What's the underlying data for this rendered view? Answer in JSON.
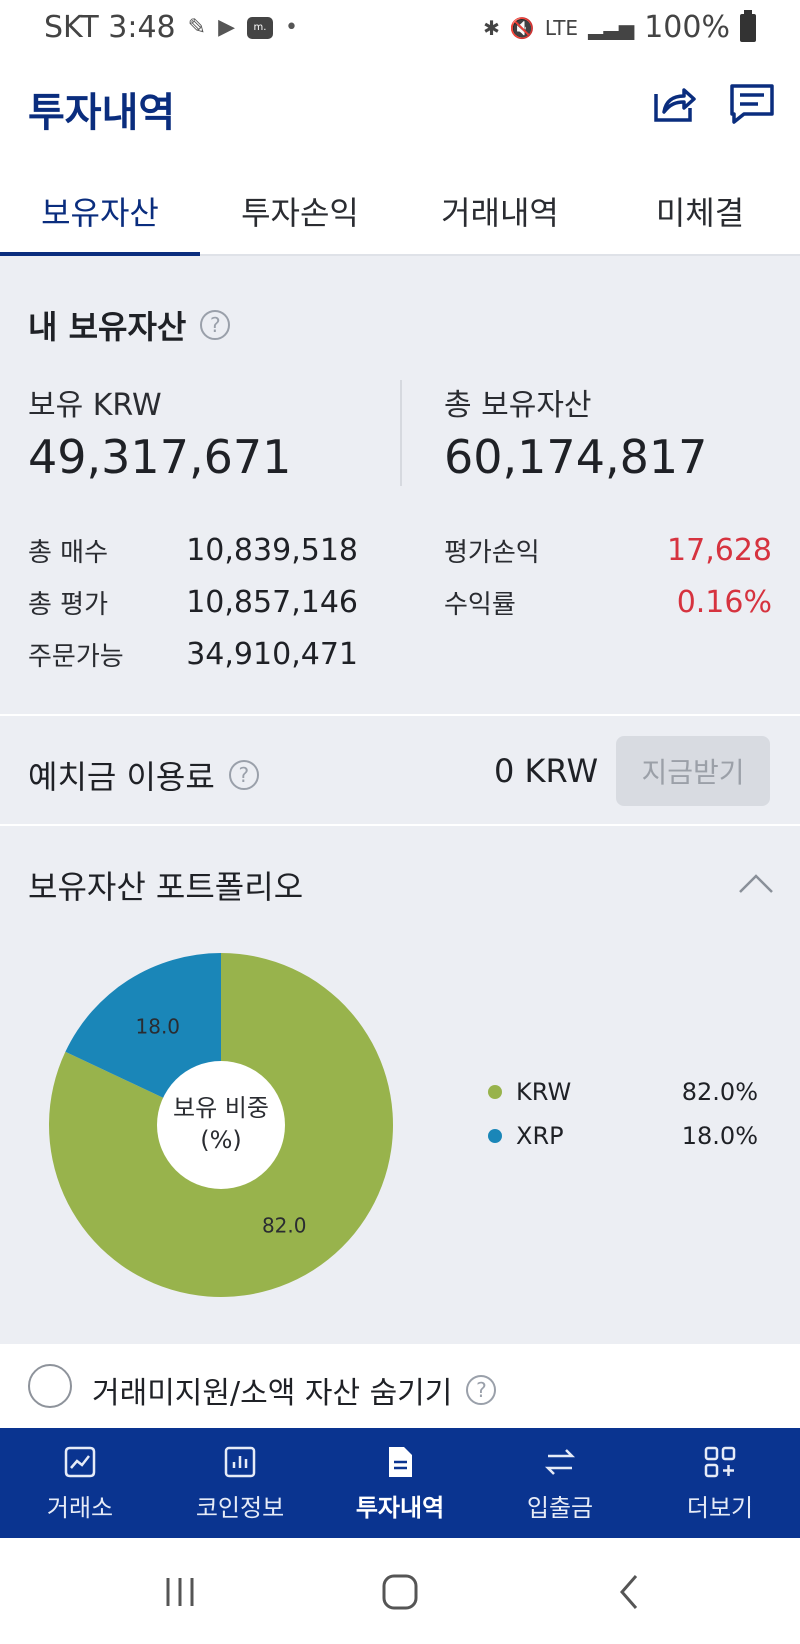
{
  "status_bar": {
    "carrier_time": "SKT 3:48",
    "battery": "100%",
    "network": "LTE",
    "notif_label": "m. Global",
    "dot": "•"
  },
  "header": {
    "title": "투자내역",
    "icons": [
      "share-icon",
      "chat-icon"
    ]
  },
  "tabs": [
    {
      "label": "보유자산",
      "active": true
    },
    {
      "label": "투자손익",
      "active": false
    },
    {
      "label": "거래내역",
      "active": false
    },
    {
      "label": "미체결",
      "active": false
    }
  ],
  "summary": {
    "title": "내 보유자산",
    "help": "?",
    "krw_label": "보유 KRW",
    "krw_value": "49,317,671",
    "total_label": "총 보유자산",
    "total_value": "60,174,817",
    "left_rows": [
      {
        "key": "총 매수",
        "value": "10,839,518"
      },
      {
        "key": "총 평가",
        "value": "10,857,146"
      },
      {
        "key": "주문가능",
        "value": "34,910,471"
      }
    ],
    "right_rows": [
      {
        "key": "평가손익",
        "value": "17,628"
      },
      {
        "key": "수익률",
        "value": "0.16%"
      }
    ],
    "positive_color": "#d6333f"
  },
  "deposit": {
    "label": "예치금 이용료",
    "help": "?",
    "amount": "0 KRW",
    "button": "지금받기"
  },
  "portfolio": {
    "title": "보유자산 포트폴리오",
    "center_line1": "보유 비중",
    "center_line2": "(%)"
  },
  "chart_data": {
    "type": "pie",
    "categories": [
      "KRW",
      "XRP"
    ],
    "values": [
      82.0,
      18.0
    ],
    "slice_labels": [
      "82.0",
      "18.0"
    ],
    "legend_values": [
      "82.0%",
      "18.0%"
    ],
    "colors": [
      "#98b34c",
      "#1a86b8"
    ],
    "donut": true,
    "legend_placement": "right"
  },
  "hide_small": {
    "label": "거래미지원/소액 자산 숨기기",
    "help": "?"
  },
  "bottom_nav": [
    {
      "label": "거래소",
      "icon": "exchange-chart-icon",
      "active": false
    },
    {
      "label": "코인정보",
      "icon": "coin-info-icon",
      "active": false
    },
    {
      "label": "투자내역",
      "icon": "document-icon",
      "active": true
    },
    {
      "label": "입출금",
      "icon": "transfer-icon",
      "active": false
    },
    {
      "label": "더보기",
      "icon": "more-grid-icon",
      "active": false
    }
  ],
  "system_nav": [
    "recent-apps-icon",
    "home-icon",
    "back-icon"
  ]
}
